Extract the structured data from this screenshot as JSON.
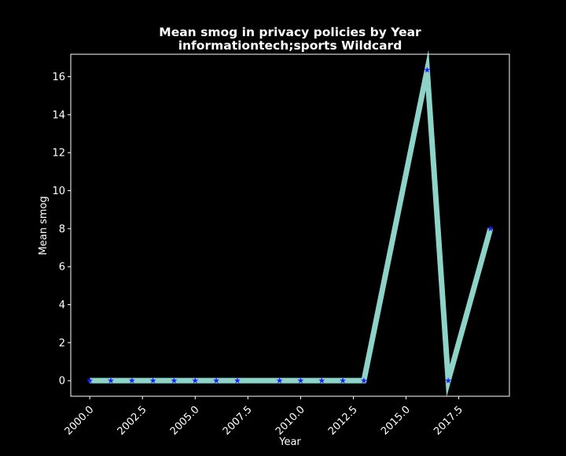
{
  "chart_data": {
    "type": "line",
    "title_line1": "Mean smog in privacy policies by Year",
    "title_line2": "informationtech;sports Wildcard",
    "xlabel": "Year",
    "ylabel": "Mean smog",
    "xlim": [
      1999.1,
      2019.9
    ],
    "ylim": [
      -0.82,
      17.18
    ],
    "x_ticks": [
      2000.0,
      2002.5,
      2005.0,
      2007.5,
      2010.0,
      2012.5,
      2015.0,
      2017.5
    ],
    "x_tick_labels": [
      "2000.0",
      "2002.5",
      "2005.0",
      "2007.5",
      "2010.0",
      "2012.5",
      "2015.0",
      "2017.5"
    ],
    "y_ticks": [
      0,
      2,
      4,
      6,
      8,
      10,
      12,
      14,
      16
    ],
    "y_tick_labels": [
      "0",
      "2",
      "4",
      "6",
      "8",
      "10",
      "12",
      "14",
      "16"
    ],
    "grid": false,
    "legend": "none",
    "series": [
      {
        "x": [
          2000,
          2001,
          2002,
          2003,
          2004,
          2005,
          2006,
          2007,
          2009,
          2010,
          2011,
          2012,
          2013,
          2016,
          2017,
          2019
        ],
        "y": [
          0,
          0,
          0,
          0,
          0,
          0,
          0,
          0,
          0,
          0,
          0,
          0,
          0,
          16.35,
          0,
          8.0
        ],
        "line_color": "#8dd3c7",
        "marker": "star",
        "marker_color": "#1f1fff"
      }
    ],
    "colors": {
      "background": "#000000",
      "foreground": "#ffffff"
    }
  }
}
